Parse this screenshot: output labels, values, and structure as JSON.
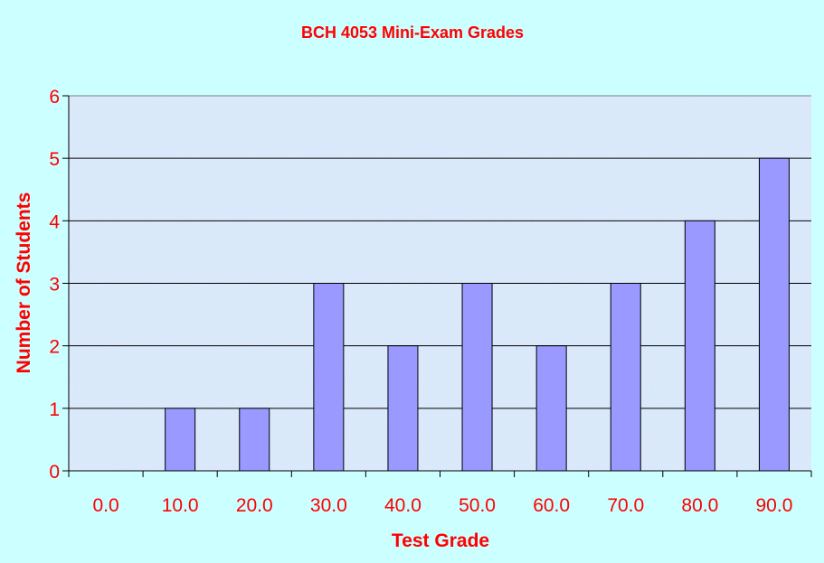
{
  "chart_data": {
    "type": "bar",
    "title": "BCH 4053 Mini-Exam Grades",
    "xlabel": "Test Grade",
    "ylabel": "Number of Students",
    "categories": [
      "0.0",
      "10.0",
      "20.0",
      "30.0",
      "40.0",
      "50.0",
      "60.0",
      "70.0",
      "80.0",
      "90.0"
    ],
    "values": [
      0,
      1,
      1,
      3,
      2,
      3,
      2,
      3,
      4,
      5
    ],
    "ylim": [
      0,
      6
    ],
    "yticks": [
      "0",
      "1",
      "2",
      "3",
      "4",
      "5",
      "6"
    ],
    "grid": true,
    "legend": "none",
    "colors": {
      "bar": "#9999ff",
      "text": "#ff0000",
      "background": "#ccffff",
      "plot": "#d8e8fb"
    }
  }
}
